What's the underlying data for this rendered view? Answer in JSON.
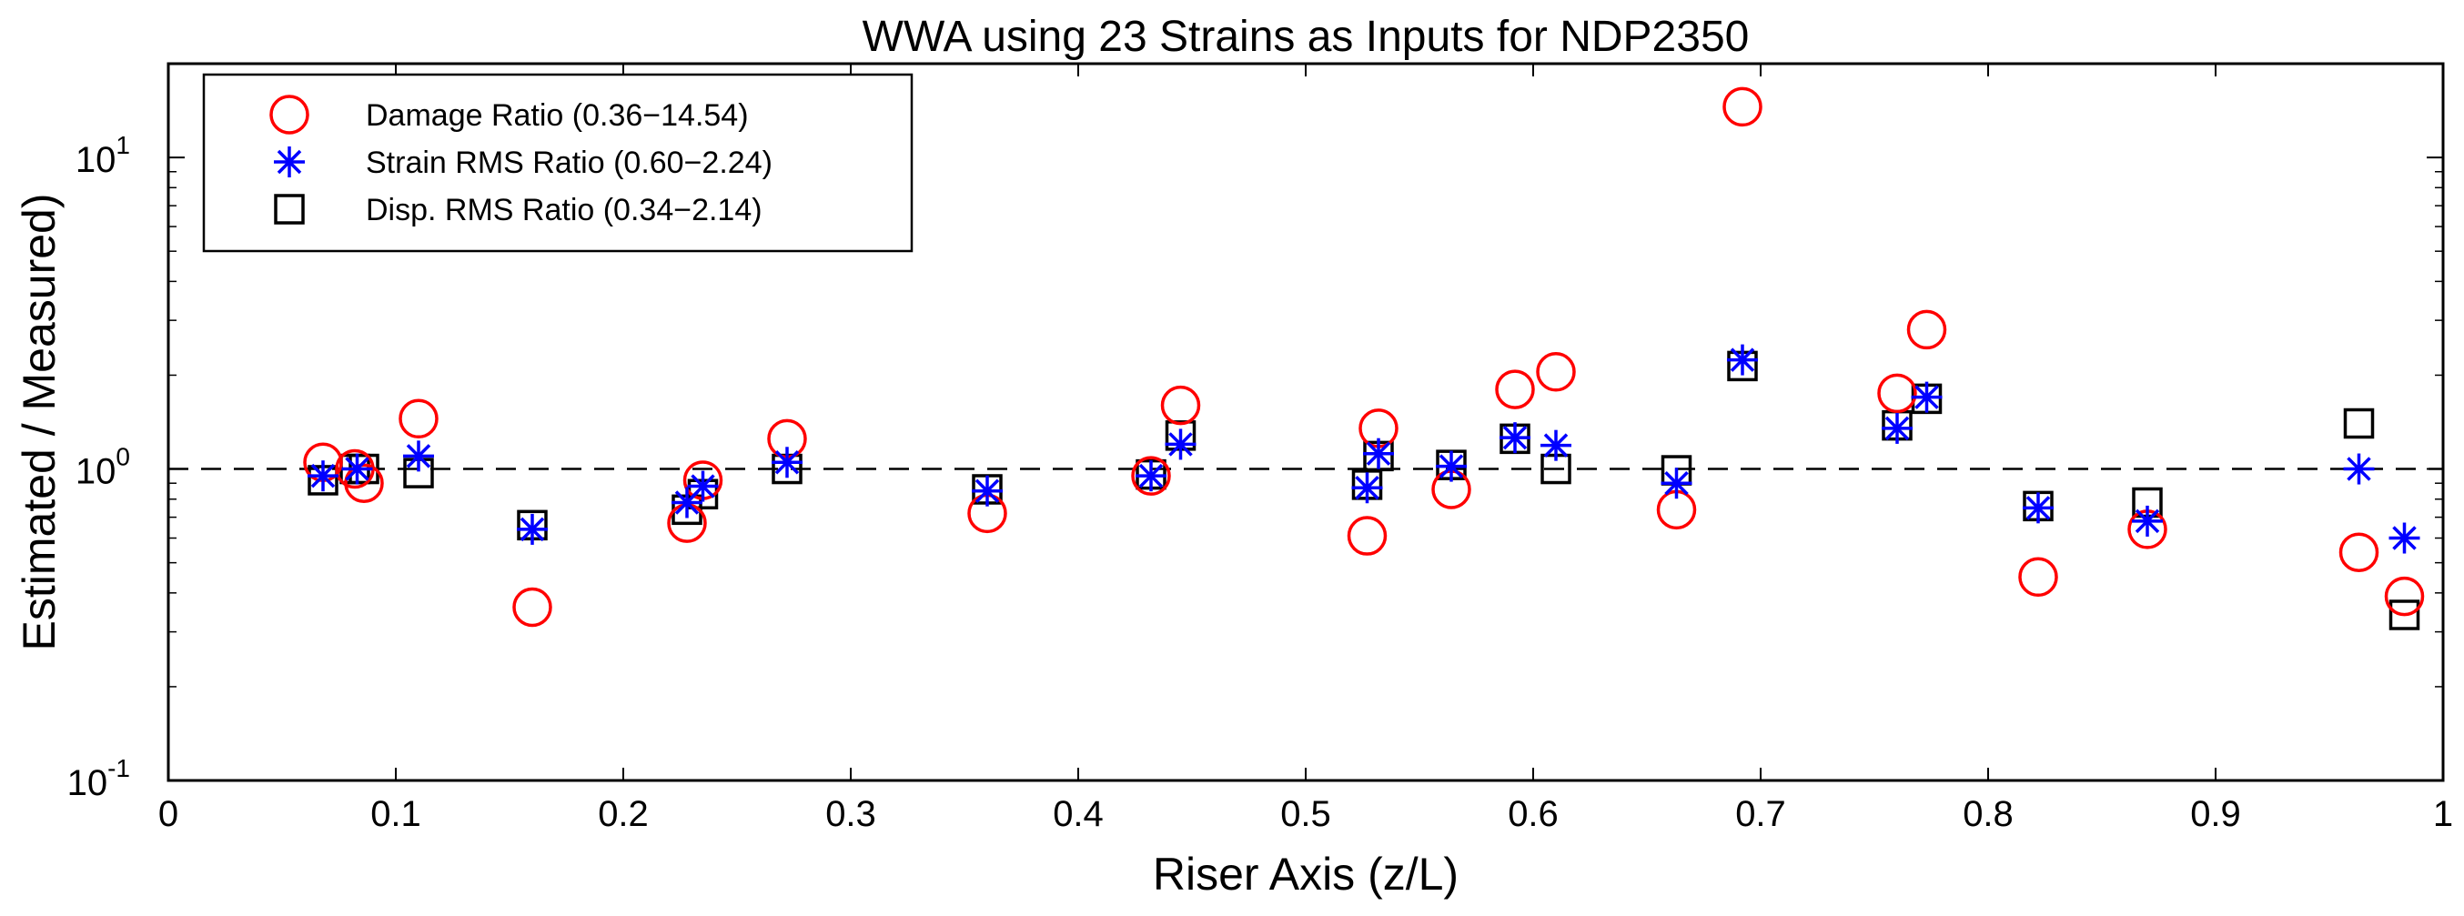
{
  "chart_data": {
    "type": "scatter",
    "title": "WWA using 23 Strains as Inputs for NDP2350",
    "xlabel": "Riser Axis (z/L)",
    "ylabel": "Estimated / Measured)",
    "xlim": [
      0,
      1
    ],
    "ylim": [
      0.1,
      20
    ],
    "yscale": "log",
    "x_ticks": [
      "0",
      "0.1",
      "0.2",
      "0.3",
      "0.4",
      "0.5",
      "0.6",
      "0.7",
      "0.8",
      "0.9",
      "1"
    ],
    "y_ticks": [
      {
        "base": "10",
        "exp": "-1",
        "value": 0.1
      },
      {
        "base": "10",
        "exp": "0",
        "value": 1
      },
      {
        "base": "10",
        "exp": "1",
        "value": 10
      }
    ],
    "reference_line": 1.0,
    "legend_position": "top-left",
    "series": [
      {
        "name": "Damage Ratio (0.36−14.54)",
        "marker": "circle",
        "color": "#ff0000",
        "points": [
          [
            0.068,
            1.05
          ],
          [
            0.082,
            1.0
          ],
          [
            0.086,
            0.9
          ],
          [
            0.11,
            1.45
          ],
          [
            0.16,
            0.36
          ],
          [
            0.228,
            0.67
          ],
          [
            0.235,
            0.92
          ],
          [
            0.272,
            1.25
          ],
          [
            0.36,
            0.72
          ],
          [
            0.432,
            0.95
          ],
          [
            0.445,
            1.6
          ],
          [
            0.527,
            0.61
          ],
          [
            0.532,
            1.35
          ],
          [
            0.564,
            0.86
          ],
          [
            0.592,
            1.8
          ],
          [
            0.61,
            2.05
          ],
          [
            0.663,
            0.74
          ],
          [
            0.692,
            14.54
          ],
          [
            0.76,
            1.75
          ],
          [
            0.773,
            2.8
          ],
          [
            0.822,
            0.45
          ],
          [
            0.87,
            0.64
          ],
          [
            0.963,
            0.54
          ],
          [
            0.983,
            0.39
          ]
        ]
      },
      {
        "name": "Strain RMS Ratio (0.60−2.24)",
        "marker": "asterisk",
        "color": "#0000ff",
        "points": [
          [
            0.068,
            0.95
          ],
          [
            0.083,
            1.0
          ],
          [
            0.11,
            1.1
          ],
          [
            0.16,
            0.64
          ],
          [
            0.228,
            0.78
          ],
          [
            0.235,
            0.88
          ],
          [
            0.272,
            1.05
          ],
          [
            0.36,
            0.85
          ],
          [
            0.432,
            0.95
          ],
          [
            0.445,
            1.2
          ],
          [
            0.527,
            0.87
          ],
          [
            0.532,
            1.12
          ],
          [
            0.564,
            1.02
          ],
          [
            0.592,
            1.26
          ],
          [
            0.61,
            1.19
          ],
          [
            0.663,
            0.9
          ],
          [
            0.692,
            2.24
          ],
          [
            0.76,
            1.35
          ],
          [
            0.773,
            1.7
          ],
          [
            0.822,
            0.75
          ],
          [
            0.87,
            0.68
          ],
          [
            0.963,
            1.0
          ],
          [
            0.983,
            0.6
          ]
        ]
      },
      {
        "name": "Disp. RMS Ratio (0.34−2.14)",
        "marker": "square",
        "color": "#000000",
        "points": [
          [
            0.068,
            0.92
          ],
          [
            0.082,
            1.0
          ],
          [
            0.086,
            1.0
          ],
          [
            0.11,
            0.97
          ],
          [
            0.16,
            0.66
          ],
          [
            0.228,
            0.74
          ],
          [
            0.235,
            0.83
          ],
          [
            0.272,
            1.0
          ],
          [
            0.36,
            0.86
          ],
          [
            0.432,
            0.96
          ],
          [
            0.445,
            1.28
          ],
          [
            0.527,
            0.89
          ],
          [
            0.532,
            1.1
          ],
          [
            0.564,
            1.03
          ],
          [
            0.592,
            1.25
          ],
          [
            0.61,
            1.0
          ],
          [
            0.663,
            0.99
          ],
          [
            0.692,
            2.14
          ],
          [
            0.76,
            1.38
          ],
          [
            0.773,
            1.68
          ],
          [
            0.822,
            0.76
          ],
          [
            0.87,
            0.78
          ],
          [
            0.963,
            1.4
          ],
          [
            0.983,
            0.34
          ]
        ]
      }
    ]
  }
}
